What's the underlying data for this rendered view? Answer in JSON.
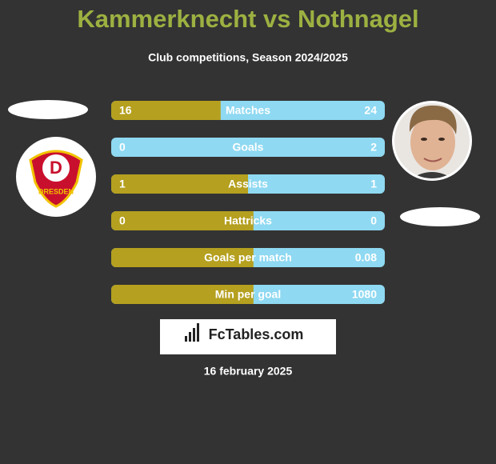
{
  "title": "Kammerknecht vs Nothnagel",
  "subtitle": "Club competitions, Season 2024/2025",
  "left_badge": "DRESDEN",
  "rows": [
    {
      "label": "Matches",
      "left": 16,
      "right": 24
    },
    {
      "label": "Goals",
      "left": 0,
      "right": 2
    },
    {
      "label": "Assists",
      "left": 1,
      "right": 1
    },
    {
      "label": "Hattricks",
      "left": 0,
      "right": 0
    },
    {
      "label": "Goals per match",
      "right": 0.08
    },
    {
      "label": "Min per goal",
      "right": 1080
    }
  ],
  "brand": "FcTables.com",
  "date": "16 february 2025"
}
